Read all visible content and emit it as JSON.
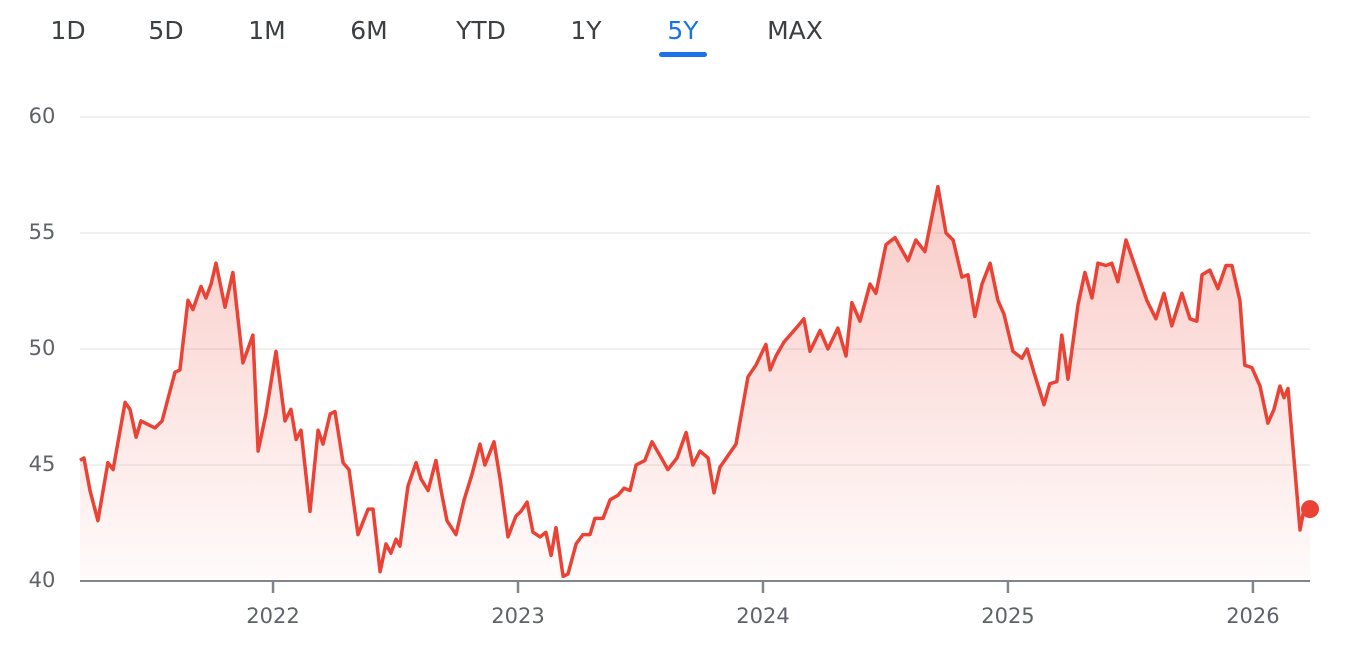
{
  "range_tabs": {
    "options": [
      "1D",
      "5D",
      "1M",
      "6M",
      "YTD",
      "1Y",
      "5Y",
      "MAX"
    ],
    "selected_index": 6
  },
  "chart_data": {
    "type": "line",
    "x": [
      2021.212,
      2021.228,
      2021.253,
      2021.285,
      2021.326,
      2021.347,
      2021.396,
      2021.416,
      2021.441,
      2021.461,
      2021.498,
      2021.518,
      2021.547,
      2021.6,
      2021.62,
      2021.653,
      2021.673,
      2021.706,
      2021.726,
      2021.747,
      2021.767,
      2021.804,
      2021.836,
      2021.877,
      2021.918,
      2021.939,
      2021.971,
      2022.012,
      2022.049,
      2022.073,
      2022.094,
      2022.114,
      2022.151,
      2022.184,
      2022.204,
      2022.233,
      2022.253,
      2022.286,
      2022.31,
      2022.347,
      2022.388,
      2022.408,
      2022.437,
      2022.461,
      2022.481,
      2022.502,
      2022.518,
      2022.551,
      2022.584,
      2022.604,
      2022.633,
      2022.665,
      2022.686,
      2022.71,
      2022.747,
      2022.78,
      2022.812,
      2022.845,
      2022.865,
      2022.902,
      2022.927,
      2022.959,
      2022.992,
      2023.012,
      2023.037,
      2023.061,
      2023.09,
      2023.114,
      2023.135,
      2023.155,
      2023.184,
      2023.204,
      2023.237,
      2023.265,
      2023.294,
      2023.314,
      2023.347,
      2023.376,
      2023.408,
      2023.433,
      2023.457,
      2023.482,
      2023.518,
      2023.547,
      2023.58,
      2023.612,
      2023.649,
      2023.686,
      2023.714,
      2023.743,
      2023.776,
      2023.8,
      2023.824,
      2023.857,
      2023.89,
      2023.939,
      2023.971,
      2024.012,
      2024.029,
      2024.053,
      2024.086,
      2024.135,
      2024.167,
      2024.192,
      2024.233,
      2024.265,
      2024.306,
      2024.339,
      2024.363,
      2024.396,
      2024.437,
      2024.461,
      2024.502,
      2024.539,
      2024.592,
      2024.624,
      2024.661,
      2024.714,
      2024.747,
      2024.776,
      2024.812,
      2024.837,
      2024.865,
      2024.894,
      2024.927,
      2024.959,
      2024.984,
      2025.02,
      2025.057,
      2025.078,
      2025.106,
      2025.147,
      2025.171,
      2025.2,
      2025.22,
      2025.245,
      2025.286,
      2025.314,
      2025.343,
      2025.367,
      2025.4,
      2025.424,
      2025.449,
      2025.482,
      2025.531,
      2025.567,
      2025.604,
      2025.637,
      2025.669,
      2025.71,
      2025.743,
      2025.771,
      2025.792,
      2025.824,
      2025.857,
      2025.89,
      2025.914,
      2025.947,
      2025.967,
      2025.996,
      2026.029,
      2026.061,
      2026.086,
      2026.11,
      2026.127,
      2026.143,
      2026.192,
      2026.212,
      2026.233
    ],
    "series": [
      {
        "color": "#ea4335",
        "values": [
          45.2,
          45.3,
          43.9,
          42.6,
          45.1,
          44.8,
          47.7,
          47.4,
          46.2,
          46.9,
          46.7,
          46.6,
          46.9,
          49.0,
          49.1,
          52.1,
          51.7,
          52.7,
          52.2,
          52.8,
          53.7,
          51.8,
          53.3,
          49.4,
          50.6,
          45.6,
          47.2,
          49.9,
          46.9,
          47.4,
          46.1,
          46.5,
          43.0,
          46.5,
          45.9,
          47.2,
          47.3,
          45.1,
          44.8,
          42.0,
          43.1,
          43.1,
          40.4,
          41.6,
          41.2,
          41.8,
          41.5,
          44.1,
          45.1,
          44.4,
          43.9,
          45.2,
          43.9,
          42.6,
          42.0,
          43.5,
          44.6,
          45.9,
          45.0,
          46.0,
          44.4,
          41.9,
          42.8,
          43.0,
          43.4,
          42.1,
          41.9,
          42.1,
          41.1,
          42.3,
          40.2,
          40.3,
          41.6,
          42.0,
          42.0,
          42.7,
          42.7,
          43.5,
          43.7,
          44.0,
          43.9,
          45.0,
          45.2,
          46.0,
          45.4,
          44.8,
          45.3,
          46.4,
          45.0,
          45.6,
          45.3,
          43.8,
          44.9,
          45.4,
          45.9,
          48.8,
          49.3,
          50.2,
          49.1,
          49.7,
          50.3,
          50.9,
          51.3,
          49.9,
          50.8,
          50.0,
          50.9,
          49.7,
          52.0,
          51.2,
          52.8,
          52.4,
          54.5,
          54.8,
          53.8,
          54.7,
          54.2,
          57.0,
          55.0,
          54.7,
          53.1,
          53.2,
          51.4,
          52.8,
          53.7,
          52.1,
          51.5,
          49.9,
          49.6,
          50.0,
          49.0,
          47.6,
          48.5,
          48.6,
          50.6,
          48.7,
          51.9,
          53.3,
          52.2,
          53.7,
          53.6,
          53.7,
          52.9,
          54.7,
          53.2,
          52.1,
          51.3,
          52.4,
          51.0,
          52.4,
          51.3,
          51.2,
          53.2,
          53.4,
          52.6,
          53.6,
          53.6,
          52.1,
          49.3,
          49.2,
          48.4,
          46.8,
          47.4,
          48.4,
          47.9,
          48.3,
          42.2,
          43.3,
          43.1
        ]
      }
    ],
    "xlim": [
      2021.212,
      2026.233
    ],
    "xticks": [
      2022,
      2023,
      2024,
      2025,
      2026
    ],
    "ylim": [
      40,
      60
    ],
    "yticks": [
      40,
      45,
      50,
      55,
      60
    ],
    "grid": true
  }
}
